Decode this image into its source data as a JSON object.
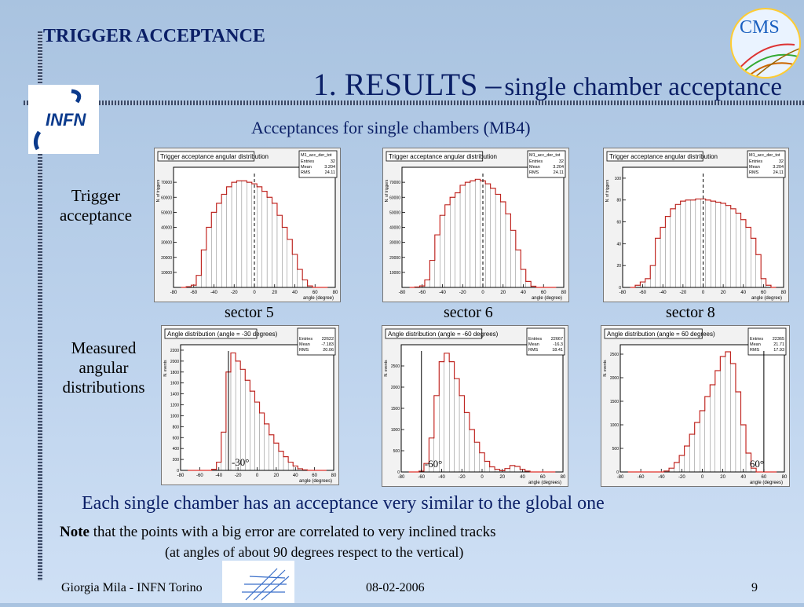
{
  "header": "TRIGGER ACCEPTANCE",
  "title": {
    "main": "1. RESULTS –",
    "rest": "single chamber acceptance"
  },
  "subtitle": "Acceptances for single chambers   (MB4)",
  "row_labels": {
    "trigger": [
      "Trigger",
      "acceptance"
    ],
    "measured": [
      "Measured",
      "angular",
      "distributions"
    ]
  },
  "sectors": [
    "sector 5",
    "sector 6",
    "sector 8"
  ],
  "angle_marks": [
    "-30°",
    "-60°",
    "60°"
  ],
  "note_main": "Each single chamber has an acceptance very similar to the global one",
  "note_bold": "Note",
  "note_rest": " that the points with a big error are correlated to very inclined tracks",
  "note_paren": "(at angles of about  90 degrees respect to the vertical)",
  "footer": {
    "author": "Giorgia Mila - INFN Torino",
    "date": "08-02-2006",
    "page": "9"
  },
  "logos": {
    "infn": "INFN",
    "cms": "CMS"
  },
  "colors": {
    "title": "#0b1f66",
    "hist": "#e0302a"
  },
  "chart_data": [
    {
      "type": "bar",
      "title": "Trigger acceptance angular distribution",
      "stats": {
        "name": "M1_acc_der_tot",
        "entries": "32",
        "mean": "3.204",
        "rms": "24.11"
      },
      "xlabel": "angle (degree)",
      "ylabel": "N. of triggers",
      "xlim": [
        -80,
        80
      ],
      "ylim": [
        0,
        80000
      ],
      "x": [
        -70,
        -65,
        -60,
        -55,
        -50,
        -45,
        -40,
        -35,
        -30,
        -25,
        -20,
        -15,
        -10,
        -5,
        0,
        5,
        10,
        15,
        20,
        25,
        30,
        35,
        40,
        45,
        50,
        55,
        60,
        65,
        70
      ],
      "values": [
        0,
        500,
        1500,
        8000,
        25000,
        40000,
        50000,
        56000,
        62000,
        67000,
        70000,
        71000,
        71000,
        70000,
        69000,
        67000,
        64000,
        60000,
        56000,
        48000,
        40000,
        32000,
        22000,
        12000,
        5000,
        1000,
        0,
        0,
        0
      ],
      "xticks": [
        "-80",
        "-60",
        "-40",
        "-20",
        "0",
        "20",
        "40",
        "60",
        "80"
      ],
      "yticks": [
        "10000",
        "20000",
        "30000",
        "40000",
        "50000",
        "60000",
        "70000"
      ]
    },
    {
      "type": "bar",
      "title": "Trigger acceptance angular distribution",
      "stats": {
        "name": "M1_acc_der_tot",
        "entries": "32",
        "mean": "3.204",
        "rms": "24.11"
      },
      "xlabel": "angle (degree)",
      "ylabel": "N. of triggers",
      "xlim": [
        -80,
        80
      ],
      "ylim": [
        0,
        80000
      ],
      "x": [
        -70,
        -65,
        -60,
        -55,
        -50,
        -45,
        -40,
        -35,
        -30,
        -25,
        -20,
        -15,
        -10,
        -5,
        0,
        5,
        10,
        15,
        20,
        25,
        30,
        35,
        40,
        45,
        50,
        55,
        60,
        65,
        70
      ],
      "values": [
        0,
        300,
        1000,
        5000,
        18000,
        35000,
        48000,
        55000,
        60000,
        63000,
        68000,
        70000,
        71000,
        72000,
        71000,
        69000,
        66000,
        62000,
        57000,
        49000,
        38000,
        25000,
        12000,
        4000,
        800,
        0,
        0,
        0,
        0
      ],
      "xticks": [
        "-80",
        "-60",
        "-40",
        "-20",
        "0",
        "20",
        "40",
        "60",
        "80"
      ],
      "yticks": [
        "10000",
        "20000",
        "30000",
        "40000",
        "50000",
        "60000",
        "70000"
      ]
    },
    {
      "type": "bar",
      "title": "Trigger acceptance angular distribution",
      "stats": {
        "name": "M1_acc_der_tot",
        "entries": "32",
        "mean": "3.204",
        "rms": "24.11"
      },
      "xlabel": "angle (degree)",
      "ylabel": "N. of triggers",
      "xlim": [
        -80,
        80
      ],
      "ylim": [
        0,
        110
      ],
      "x": [
        -70,
        -65,
        -60,
        -55,
        -50,
        -45,
        -40,
        -35,
        -30,
        -25,
        -20,
        -15,
        -10,
        -5,
        0,
        5,
        10,
        15,
        20,
        25,
        30,
        35,
        40,
        45,
        50,
        55,
        60,
        65,
        70
      ],
      "values": [
        0,
        2,
        5,
        8,
        20,
        45,
        55,
        65,
        72,
        76,
        79,
        80,
        80,
        81,
        81,
        80,
        79,
        78,
        77,
        75,
        72,
        68,
        62,
        55,
        45,
        30,
        8,
        2,
        0
      ],
      "xticks": [
        "-80",
        "-60",
        "-40",
        "-20",
        "0",
        "20",
        "40",
        "60",
        "80"
      ],
      "yticks": [
        "0",
        "20",
        "40",
        "60",
        "80",
        "100"
      ]
    },
    {
      "type": "bar",
      "title": "Angle distribution (angle = -30 degrees)",
      "stats": {
        "entries": "22622",
        "mean": "-7.183",
        "rms": "20.06"
      },
      "xlabel": "angle (degrees)",
      "ylabel": "N. events",
      "xlim": [
        -80,
        80
      ],
      "ylim": [
        0,
        2300
      ],
      "x": [
        -70,
        -65,
        -60,
        -55,
        -50,
        -45,
        -40,
        -35,
        -30,
        -25,
        -20,
        -15,
        -10,
        -5,
        0,
        5,
        10,
        15,
        20,
        25,
        30,
        35,
        40,
        45,
        50,
        55,
        60,
        65,
        70
      ],
      "values": [
        0,
        0,
        0,
        0,
        0,
        20,
        150,
        700,
        1800,
        2150,
        2000,
        1850,
        1650,
        1450,
        1250,
        1050,
        850,
        650,
        500,
        350,
        250,
        150,
        80,
        30,
        10,
        0,
        0,
        0,
        0
      ],
      "xticks": [
        "-80",
        "-60",
        "-40",
        "-20",
        "0",
        "20",
        "40",
        "60",
        "80"
      ],
      "yticks": [
        "0",
        "200",
        "400",
        "600",
        "800",
        "1000",
        "1200",
        "1400",
        "1600",
        "1800",
        "2000",
        "2200"
      ]
    },
    {
      "type": "bar",
      "title": "Angle distribution (angle = -60 degrees)",
      "stats": {
        "entries": "22667",
        "mean": "-16.3",
        "rms": "18.41"
      },
      "xlabel": "angle (degrees)",
      "ylabel": "N. events",
      "xlim": [
        -80,
        80
      ],
      "ylim": [
        0,
        3000
      ],
      "x": [
        -70,
        -65,
        -60,
        -55,
        -50,
        -45,
        -40,
        -35,
        -30,
        -25,
        -20,
        -15,
        -10,
        -5,
        0,
        5,
        10,
        15,
        20,
        25,
        30,
        35,
        40,
        45,
        50,
        55,
        60,
        65,
        70
      ],
      "values": [
        0,
        0,
        20,
        200,
        800,
        1800,
        2600,
        2800,
        2600,
        2200,
        1800,
        1400,
        1000,
        700,
        450,
        250,
        120,
        60,
        30,
        80,
        150,
        130,
        60,
        20,
        0,
        0,
        0,
        0,
        0
      ],
      "xticks": [
        "-80",
        "-60",
        "-40",
        "-20",
        "0",
        "20",
        "40",
        "60",
        "80"
      ],
      "yticks": [
        "0",
        "500",
        "1000",
        "1500",
        "2000",
        "2500"
      ]
    },
    {
      "type": "bar",
      "title": "Angle distribution (angle =  60 degrees)",
      "stats": {
        "entries": "22365",
        "mean": "21.71",
        "rms": "17.93"
      },
      "xlabel": "angle (degrees)",
      "ylabel": "N. events",
      "xlim": [
        -80,
        80
      ],
      "ylim": [
        0,
        2700
      ],
      "x": [
        -70,
        -65,
        -60,
        -55,
        -50,
        -45,
        -40,
        -35,
        -30,
        -25,
        -20,
        -15,
        -10,
        -5,
        0,
        5,
        10,
        15,
        20,
        25,
        30,
        35,
        40,
        45,
        50,
        55,
        60,
        65,
        70
      ],
      "values": [
        0,
        0,
        0,
        0,
        0,
        0,
        0,
        20,
        80,
        200,
        350,
        550,
        800,
        1050,
        1300,
        1600,
        1850,
        2150,
        2450,
        2550,
        2300,
        1700,
        1000,
        400,
        80,
        0,
        0,
        0,
        0
      ],
      "xticks": [
        "-80",
        "-60",
        "-40",
        "-20",
        "0",
        "20",
        "40",
        "60",
        "80"
      ],
      "yticks": [
        "0",
        "500",
        "1000",
        "1500",
        "2000",
        "2500"
      ]
    }
  ]
}
